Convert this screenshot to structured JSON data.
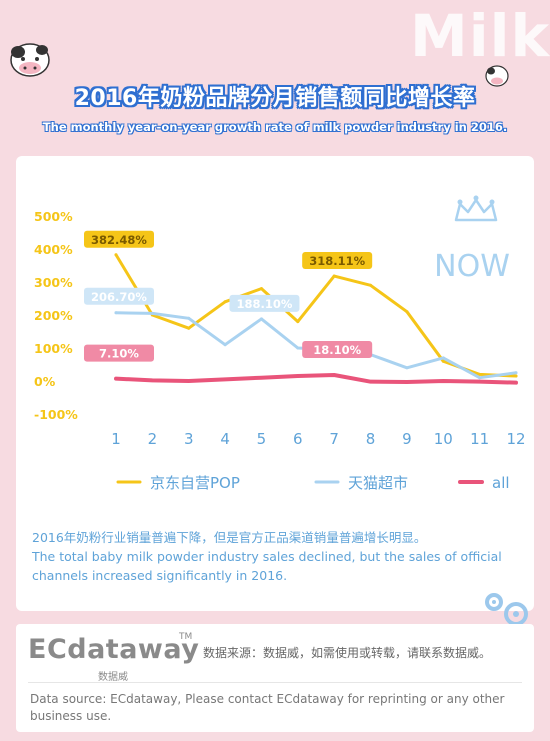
{
  "watermark": "Milk",
  "title_cn": "2016年奶粉品牌分月销售额同比增长率",
  "title_en": "The monthly year-on-year growth rate of milk powder industry in 2016.",
  "badge_text": "NOW",
  "chart_data": {
    "type": "line",
    "x": [
      "1",
      "2",
      "3",
      "4",
      "5",
      "6",
      "7",
      "8",
      "9",
      "10",
      "11",
      "12"
    ],
    "y_ticks": [
      "500%",
      "400%",
      "300%",
      "200%",
      "100%",
      "0%",
      "-100%"
    ],
    "ylim": [
      -100,
      500
    ],
    "series": [
      {
        "name": "京东自营POP",
        "color": "#f5c518",
        "values": [
          382.48,
          200,
          160,
          240,
          280,
          180,
          318.11,
          290,
          210,
          60,
          20,
          15
        ]
      },
      {
        "name": "天猫超市",
        "color": "#a9d2f0",
        "values": [
          206.7,
          205,
          190,
          110,
          188.1,
          100,
          95,
          80,
          40,
          70,
          10,
          25
        ]
      },
      {
        "name": "all",
        "color": "#e9547a",
        "values": [
          7.1,
          2,
          0,
          5,
          10,
          15,
          18.1,
          -2,
          -3,
          0,
          -2,
          -5
        ]
      }
    ],
    "annotations": [
      {
        "text": "382.48%",
        "series": 0,
        "index": 0
      },
      {
        "text": "318.11%",
        "series": 0,
        "index": 6
      },
      {
        "text": "206.70%",
        "series": 1,
        "index": 0
      },
      {
        "text": "188.10%",
        "series": 1,
        "index": 4
      },
      {
        "text": "7.10%",
        "series": 2,
        "index": 0
      },
      {
        "text": "18.10%",
        "series": 2,
        "index": 6
      }
    ],
    "legend_position": "bottom"
  },
  "note_cn": "2016年奶粉行业销量普遍下降，但是官方正品渠道销量普遍增长明显。",
  "note_en": "The total baby milk powder industry sales declined, but the sales of official  channels increased significantly in 2016.",
  "footer": {
    "brand": "ECdataway",
    "brand_tm": "TM",
    "brand_cn": "数据威",
    "source_cn": "数据来源：数据威，如需使用或转载，请联系数据威。",
    "source_en": "Data source:  ECdataway, Please contact ECdataway for reprinting or any other business use."
  }
}
